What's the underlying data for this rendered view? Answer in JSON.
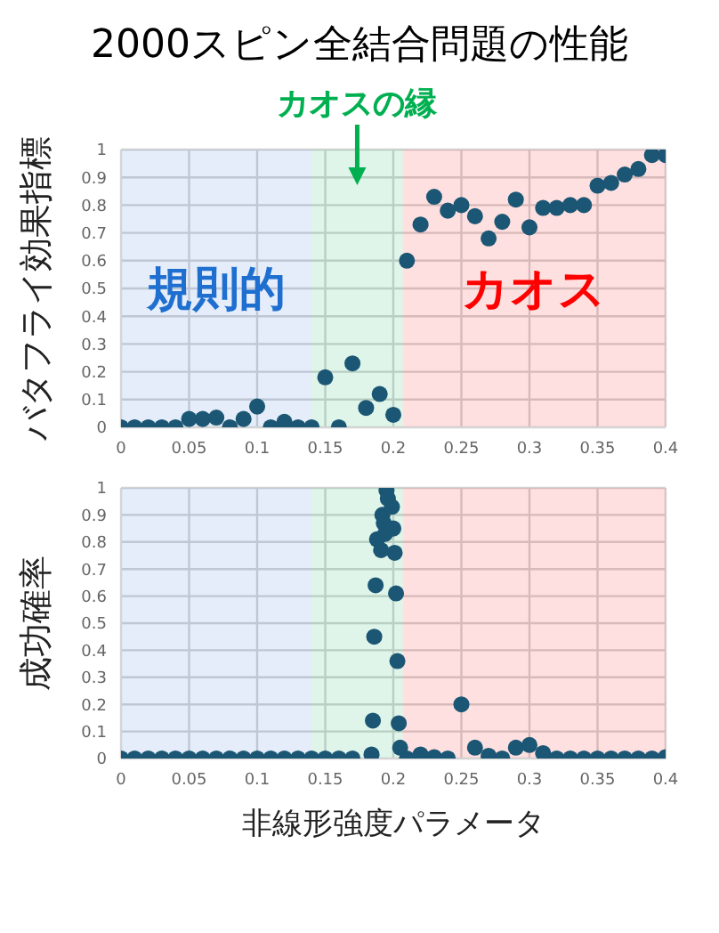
{
  "chart_data": [
    {
      "type": "scatter",
      "title": "2000スピン全結合問題の性能",
      "ylabel": "バタフライ効果指標",
      "marker": "circle",
      "grid": true,
      "series": [
        {
          "color": "#1b5674",
          "x": [
            0,
            0.01,
            0.02,
            0.03,
            0.04,
            0.05,
            0.06,
            0.07,
            0.08,
            0.09,
            0.1,
            0.11,
            0.12,
            0.13,
            0.14,
            0.15,
            0.16,
            0.17,
            0.18,
            0.19,
            0.2,
            0.21,
            0.22,
            0.23,
            0.24,
            0.25,
            0.26,
            0.27,
            0.28,
            0.29,
            0.3,
            0.31,
            0.32,
            0.33,
            0.34,
            0.35,
            0.36,
            0.37,
            0.38,
            0.39,
            0.4
          ],
          "values": [
            0,
            0,
            0,
            0,
            0,
            0.03,
            0.03,
            0.035,
            0,
            0.03,
            0.075,
            0,
            0.02,
            0,
            0,
            0.18,
            0,
            0.23,
            0.07,
            0.12,
            0.045,
            0.6,
            0.73,
            0.83,
            0.78,
            0.8,
            0.76,
            0.68,
            0.74,
            0.82,
            0.72,
            0.79,
            0.79,
            0.8,
            0.8,
            0.87,
            0.88,
            0.91,
            0.93,
            0.98,
            0.98
          ]
        }
      ],
      "xlim": [
        0,
        0.4
      ],
      "xticks": [
        0,
        0.05,
        0.1,
        0.15,
        0.2,
        0.25,
        0.3,
        0.35,
        0.4
      ],
      "ylim": [
        0,
        1
      ],
      "yticks": [
        0,
        0.1,
        0.2,
        0.3,
        0.4,
        0.5,
        0.6,
        0.7,
        0.8,
        0.9,
        1
      ],
      "bands": [
        {
          "axis": "x",
          "from": 0,
          "to": 0.14,
          "label": "規則的",
          "color": "#1f6fd0"
        },
        {
          "axis": "x",
          "from": 0.14,
          "to": 0.207,
          "label": null,
          "color": "#00b050"
        },
        {
          "axis": "x",
          "from": 0.207,
          "to": 0.4,
          "label": "カオス",
          "color": "#ff0000"
        }
      ],
      "annotations": [
        "カオスの縁"
      ]
    },
    {
      "type": "scatter",
      "ylabel": "成功確率",
      "xlabel": "非線形強度パラメータ",
      "marker": "circle",
      "grid": true,
      "series": [
        {
          "color": "#1b5674",
          "x": [
            0,
            0.01,
            0.02,
            0.03,
            0.04,
            0.05,
            0.06,
            0.07,
            0.08,
            0.09,
            0.1,
            0.11,
            0.12,
            0.13,
            0.14,
            0.15,
            0.16,
            0.17,
            0.184,
            0.185,
            0.186,
            0.187,
            0.188,
            0.191,
            0.192,
            0.193,
            0.194,
            0.195,
            0.196,
            0.199,
            0.2,
            0.201,
            0.202,
            0.203,
            0.204,
            0.205,
            0.21,
            0.22,
            0.23,
            0.24,
            0.25,
            0.26,
            0.27,
            0.28,
            0.29,
            0.3,
            0.31,
            0.32,
            0.33,
            0.34,
            0.35,
            0.36,
            0.37,
            0.38,
            0.39,
            0.4
          ],
          "values": [
            0,
            0,
            0,
            0,
            0,
            0,
            0,
            0,
            0,
            0,
            0,
            0,
            0,
            0,
            0,
            0,
            0,
            0,
            0.015,
            0.14,
            0.45,
            0.64,
            0.81,
            0.77,
            0.9,
            0.87,
            0.83,
            0.99,
            0.96,
            0.93,
            0.85,
            0.76,
            0.61,
            0.36,
            0.13,
            0.04,
            0,
            0.015,
            0.005,
            0,
            0.2,
            0.04,
            0.01,
            0,
            0.04,
            0.05,
            0.02,
            0,
            0,
            0,
            0,
            0,
            0,
            0,
            0,
            0.005
          ]
        }
      ],
      "xlim": [
        0,
        0.4
      ],
      "xticks": [
        0,
        0.05,
        0.1,
        0.15,
        0.2,
        0.25,
        0.3,
        0.35,
        0.4
      ],
      "ylim": [
        0,
        1
      ],
      "yticks": [
        0,
        0.1,
        0.2,
        0.3,
        0.4,
        0.5,
        0.6,
        0.7,
        0.8,
        0.9,
        1
      ],
      "bands": [
        {
          "axis": "x",
          "from": 0,
          "to": 0.14,
          "label": null,
          "color": "#1f6fd0"
        },
        {
          "axis": "x",
          "from": 0.14,
          "to": 0.207,
          "label": null,
          "color": "#00b050"
        },
        {
          "axis": "x",
          "from": 0.207,
          "to": 0.4,
          "label": null,
          "color": "#ff0000"
        }
      ]
    }
  ]
}
